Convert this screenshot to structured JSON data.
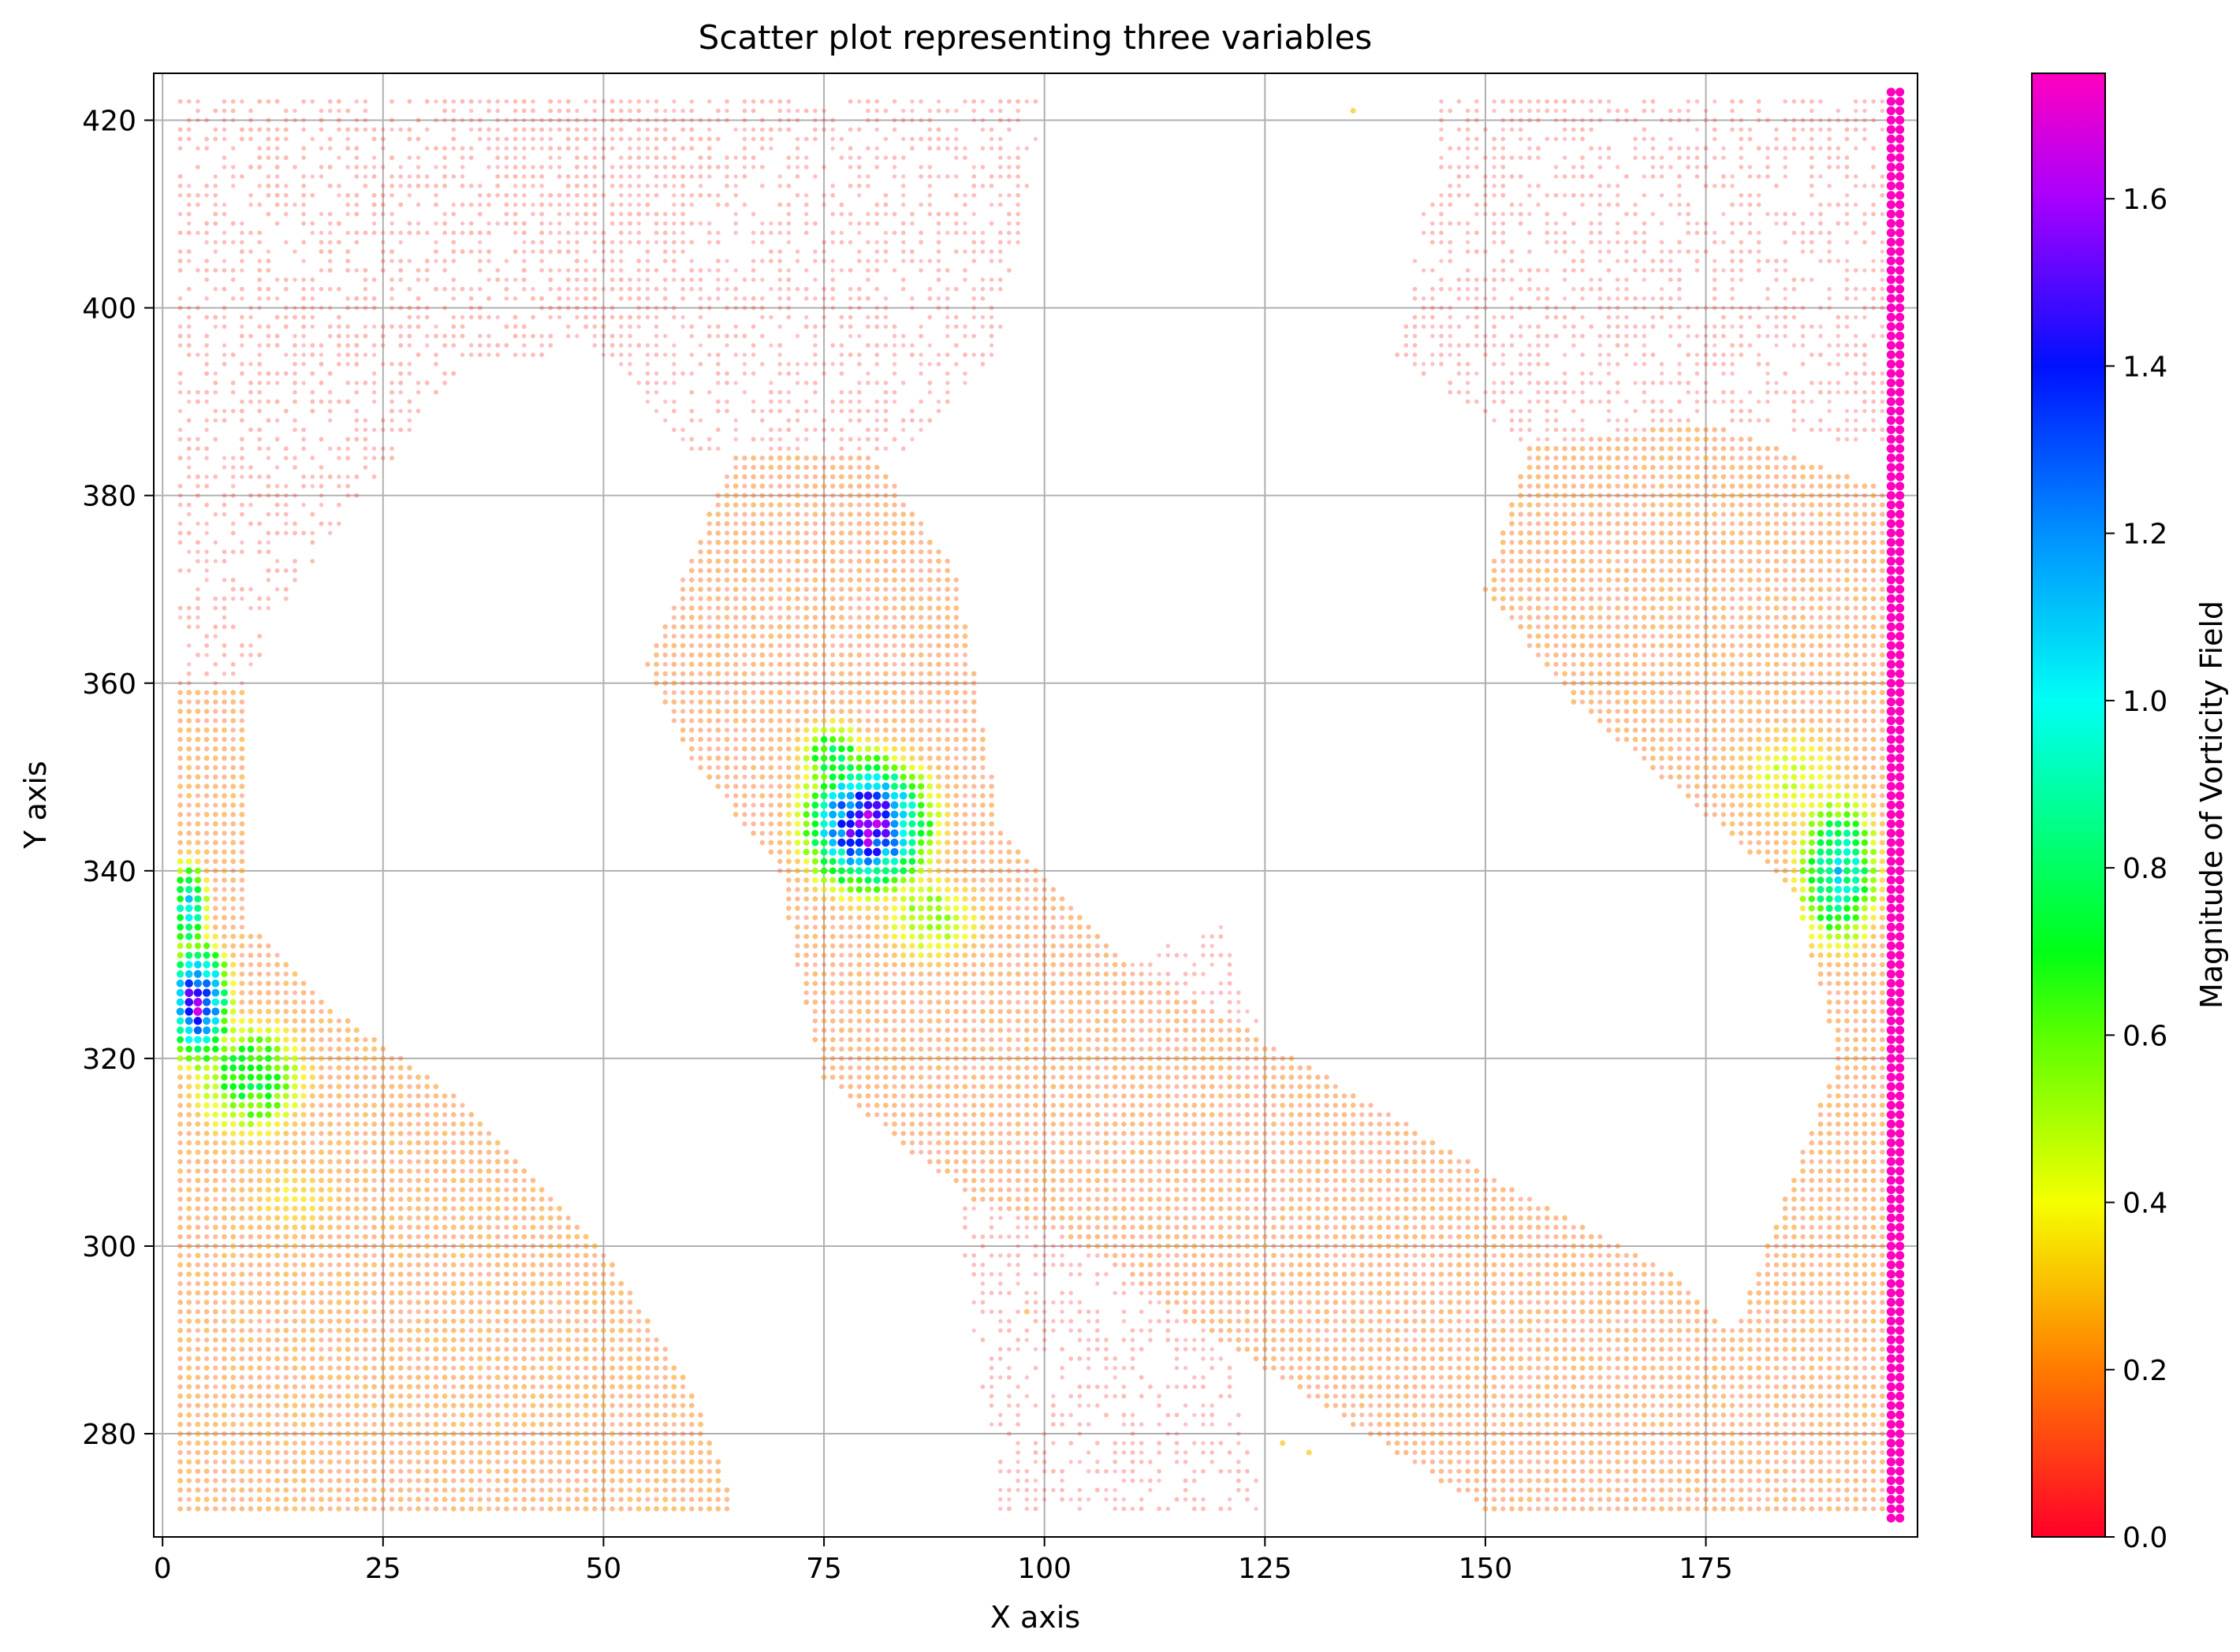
{
  "chart_data": {
    "type": "scatter",
    "title": "Scatter plot representing three variables",
    "xlabel": "X axis",
    "ylabel": "Y axis",
    "xlim": [
      -1,
      199
    ],
    "ylim": [
      269,
      425
    ],
    "xticks": [
      0,
      25,
      50,
      75,
      100,
      125,
      150,
      175
    ],
    "xtick_labels": [
      "0",
      "25",
      "50",
      "75",
      "100",
      "125",
      "150",
      "175"
    ],
    "yticks": [
      280,
      300,
      320,
      340,
      360,
      380,
      400,
      420
    ],
    "ytick_labels": [
      "280",
      "300",
      "320",
      "340",
      "360",
      "380",
      "400",
      "420"
    ],
    "grid": true,
    "colormap": "gist_rainbow_r",
    "colorbar": {
      "label": "Magnitude of Vorticity Field",
      "range": [
        0.0,
        1.75
      ],
      "ticks": [
        0.0,
        0.2,
        0.4,
        0.6,
        0.8,
        1.0,
        1.2,
        1.4,
        1.6
      ],
      "tick_labels": [
        "0.0",
        "0.2",
        "0.4",
        "0.6",
        "0.8",
        "1.0",
        "1.2",
        "1.4",
        "1.6"
      ],
      "stops": [
        {
          "v": 0.0,
          "color": "#ff0029"
        },
        {
          "v": 0.2,
          "color": "#ff7a00"
        },
        {
          "v": 0.4,
          "color": "#f5ff00"
        },
        {
          "v": 0.6,
          "color": "#5aff00"
        },
        {
          "v": 0.7,
          "color": "#00ff16"
        },
        {
          "v": 1.0,
          "color": "#00fff5"
        },
        {
          "v": 1.2,
          "color": "#0090ff"
        },
        {
          "v": 1.4,
          "color": "#0010ff"
        },
        {
          "v": 1.6,
          "color": "#a800ff"
        },
        {
          "v": 1.75,
          "color": "#ff00bf"
        }
      ]
    },
    "grid_spacing": {
      "x": 1,
      "y": 1
    },
    "regions": [
      {
        "name": "left band",
        "polygon": [
          [
            2,
            272
          ],
          [
            2,
            360
          ],
          [
            10,
            360
          ],
          [
            10,
            334
          ],
          [
            20,
            325
          ],
          [
            35,
            315
          ],
          [
            50,
            300
          ],
          [
            60,
            285
          ],
          [
            65,
            272
          ]
        ],
        "base_value": 0.18
      },
      {
        "name": "central band",
        "polygon": [
          [
            55,
            362
          ],
          [
            65,
            385
          ],
          [
            80,
            385
          ],
          [
            90,
            372
          ],
          [
            95,
            345
          ],
          [
            110,
            330
          ],
          [
            125,
            322
          ],
          [
            150,
            308
          ],
          [
            170,
            298
          ],
          [
            185,
            285
          ],
          [
            190,
            272
          ],
          [
            150,
            272
          ],
          [
            120,
            290
          ],
          [
            105,
            300
          ],
          [
            92,
            305
          ],
          [
            85,
            310
          ],
          [
            75,
            318
          ],
          [
            72,
            330
          ],
          [
            70,
            340
          ],
          [
            60,
            352
          ]
        ],
        "base_value": 0.16
      },
      {
        "name": "right band",
        "polygon": [
          [
            150,
            370
          ],
          [
            155,
            385
          ],
          [
            175,
            388
          ],
          [
            197,
            380
          ],
          [
            197,
            272
          ],
          [
            175,
            272
          ],
          [
            178,
            290
          ],
          [
            190,
            320
          ],
          [
            185,
            338
          ],
          [
            170,
            350
          ],
          [
            160,
            358
          ]
        ],
        "base_value": 0.17
      }
    ],
    "faint_regions": [
      {
        "name": "upper left haze",
        "polygon": [
          [
            2,
            360
          ],
          [
            2,
            423
          ],
          [
            65,
            423
          ],
          [
            55,
            395
          ],
          [
            35,
            395
          ],
          [
            15,
            370
          ],
          [
            10,
            360
          ]
        ],
        "value": 0.06
      },
      {
        "name": "upper center haze",
        "polygon": [
          [
            30,
            423
          ],
          [
            100,
            423
          ],
          [
            95,
            395
          ],
          [
            85,
            385
          ],
          [
            60,
            385
          ],
          [
            45,
            400
          ]
        ],
        "value": 0.05
      },
      {
        "name": "upper right haze",
        "polygon": [
          [
            140,
            395
          ],
          [
            145,
            423
          ],
          [
            197,
            423
          ],
          [
            197,
            385
          ],
          [
            175,
            388
          ],
          [
            155,
            385
          ]
        ],
        "value": 0.05
      },
      {
        "name": "lower center haze",
        "polygon": [
          [
            90,
            305
          ],
          [
            110,
            330
          ],
          [
            120,
            335
          ],
          [
            125,
            322
          ],
          [
            118,
            300
          ],
          [
            125,
            272
          ],
          [
            95,
            272
          ],
          [
            92,
            290
          ]
        ],
        "value": 0.05
      }
    ],
    "hotspots": [
      {
        "x": 4,
        "y": 326,
        "peak": 1.55,
        "sx": 2.5,
        "sy": 4.5
      },
      {
        "x": 10,
        "y": 318,
        "peak": 0.75,
        "sx": 5,
        "sy": 5
      },
      {
        "x": 3,
        "y": 336,
        "peak": 1.0,
        "sx": 1.6,
        "sy": 4
      },
      {
        "x": 80,
        "y": 345,
        "peak": 1.55,
        "sx": 5,
        "sy": 5
      },
      {
        "x": 76,
        "y": 352,
        "peak": 0.8,
        "sx": 3,
        "sy": 3
      },
      {
        "x": 87,
        "y": 335,
        "peak": 0.55,
        "sx": 5,
        "sy": 4
      },
      {
        "x": 190,
        "y": 340,
        "peak": 1.0,
        "sx": 3.5,
        "sy": 6
      },
      {
        "x": 185,
        "y": 350,
        "peak": 0.45,
        "sx": 6,
        "sy": 5
      },
      {
        "x": 15,
        "y": 305,
        "peak": 0.35,
        "sx": 6,
        "sy": 4
      }
    ],
    "series": [
      {
        "x_start": 196,
        "x_end": 197,
        "y_start": 271,
        "y_end": 423,
        "value": 1.75
      }
    ],
    "isolated_points": [
      {
        "x": 135,
        "y": 421,
        "value": 0.3
      },
      {
        "x": 98,
        "y": 293,
        "value": 0.25
      },
      {
        "x": 127,
        "y": 279,
        "value": 0.3
      },
      {
        "x": 130,
        "y": 278,
        "value": 0.3
      }
    ]
  }
}
